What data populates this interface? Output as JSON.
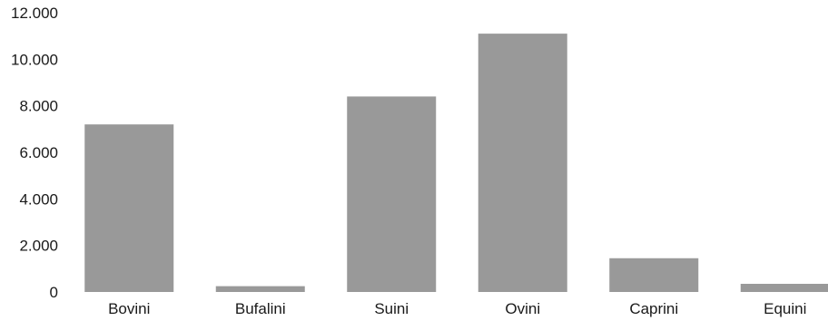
{
  "chart_data": {
    "type": "bar",
    "title": "",
    "xlabel": "",
    "ylabel": "",
    "categories": [
      "Bovini",
      "Bufalini",
      "Suini",
      "Ovini",
      "Caprini",
      "Equini"
    ],
    "values": [
      7200,
      250,
      8400,
      11100,
      1450,
      350
    ],
    "ylim": [
      0,
      12000
    ],
    "yticks": [
      0,
      2000,
      4000,
      6000,
      8000,
      10000,
      12000
    ],
    "ytick_labels": [
      "0",
      "2.000",
      "4.000",
      "6.000",
      "8.000",
      "10.000",
      "12.000"
    ],
    "grid": false,
    "legend": "none",
    "bar_color": "#999999"
  }
}
